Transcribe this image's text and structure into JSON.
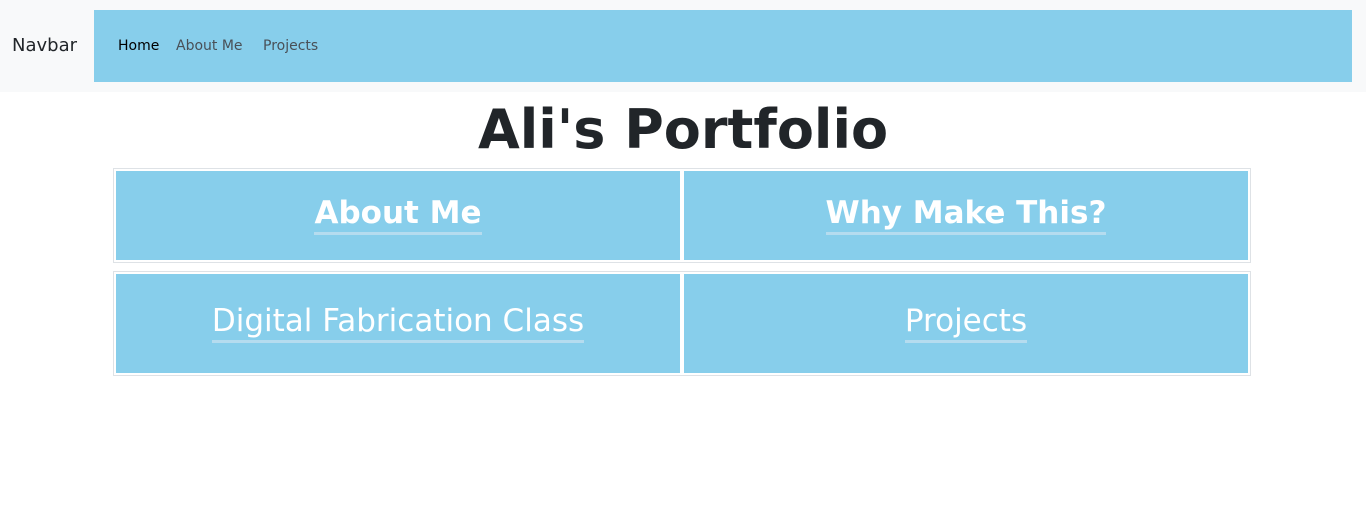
{
  "navbar": {
    "brand": "Navbar",
    "links": [
      {
        "label": "Home",
        "active": true
      },
      {
        "label": "About Me",
        "active": false
      },
      {
        "label": "Projects",
        "active": false
      }
    ]
  },
  "page_title": "Ali's Portfolio",
  "cards": [
    {
      "label": "About Me"
    },
    {
      "label": "Why Make This?"
    },
    {
      "label": "Digital Fabrication Class"
    },
    {
      "label": "Projects"
    }
  ],
  "colors": {
    "accent": "#87ceeb",
    "navbar_bg": "#f8f9fa",
    "text": "#212529"
  }
}
